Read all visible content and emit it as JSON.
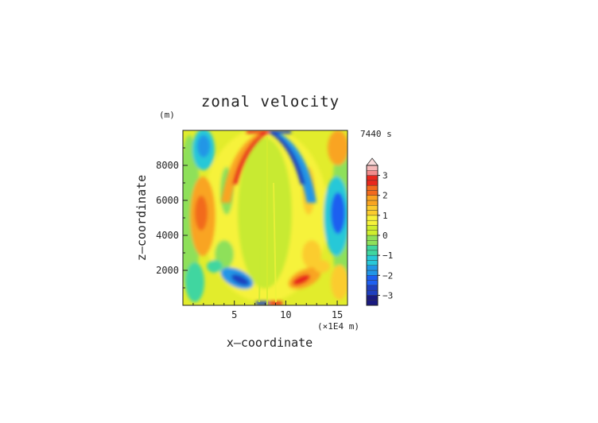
{
  "chart_data": {
    "type": "heatmap",
    "title": "zonal velocity",
    "time_label": "7440 s",
    "xlabel": "x—coordinate",
    "ylabel": "z—coordinate",
    "y_unit": "(m)",
    "x_unit": "(×1E4 m)",
    "xlim": [
      0,
      16
    ],
    "ylim": [
      0,
      10000
    ],
    "x_ticks": [
      5,
      10,
      15
    ],
    "y_ticks": [
      2000,
      4000,
      6000,
      8000
    ],
    "colorbar": {
      "levels": [
        -3.5,
        -3.25,
        -3,
        -2.75,
        -2.5,
        -2.25,
        -2,
        -1.75,
        -1.5,
        -1.25,
        -1,
        -0.75,
        -0.5,
        -0.25,
        0,
        0.25,
        0.5,
        0.75,
        1,
        1.25,
        1.5,
        1.75,
        2,
        2.25,
        2.5,
        2.75,
        3,
        3.25,
        3.5
      ],
      "tick_values": [
        3,
        2,
        1,
        0,
        -1,
        -2,
        -3
      ],
      "tick_labels": [
        "3",
        "2",
        "1",
        "0",
        "−1",
        "−2",
        "−3"
      ],
      "extend": "max"
    },
    "colors": {
      "neg3": "#1a1a80",
      "neg25": "#1f3fbf",
      "neg2": "#1e5ff0",
      "neg15": "#2296e6",
      "neg1": "#28c8d8",
      "neg05": "#40d6a0",
      "zero_low": "#8ee05a",
      "zero_high": "#cfee2e",
      "pos05": "#f6f23a",
      "pos1": "#fbcc2e",
      "pos15": "#f9a421",
      "pos2": "#f26a1e",
      "pos25": "#e8281e",
      "pos3": "#f28c8c",
      "pos35": "#f6b9b9"
    }
  }
}
